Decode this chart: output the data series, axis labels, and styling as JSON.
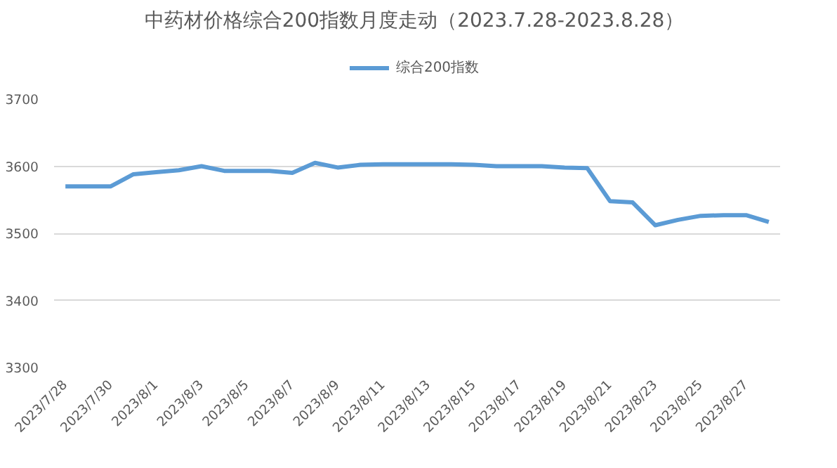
{
  "chart_data": {
    "type": "line",
    "title": "中药材价格综合200指数月度走动（2023.7.28-2023.8.28）",
    "categories": [
      "2023/7/28",
      null,
      "2023/7/30",
      null,
      "2023/8/1",
      null,
      "2023/8/3",
      null,
      "2023/8/5",
      null,
      "2023/8/7",
      null,
      "2023/8/9",
      null,
      "2023/8/11",
      null,
      "2023/8/13",
      null,
      "2023/8/15",
      null,
      "2023/8/17",
      null,
      "2023/8/19",
      null,
      "2023/8/21",
      null,
      "2023/8/23",
      null,
      "2023/8/25",
      null,
      "2023/8/27",
      null
    ],
    "series": [
      {
        "name": "综合200指数",
        "color": "#5b9bd5",
        "values": [
          3570,
          3570,
          3570,
          3588,
          3591,
          3594,
          3600,
          3593,
          3593,
          3593,
          3590,
          3605,
          3598,
          3602,
          3603,
          3603,
          3603,
          3603,
          3602,
          3600,
          3600,
          3600,
          3598,
          3597,
          3548,
          3546,
          3512,
          3520,
          3526,
          3527,
          3527,
          3517
        ]
      }
    ],
    "ylim": [
      3300,
      3700
    ],
    "yticks": [
      3300,
      3400,
      3500,
      3600,
      3700
    ],
    "grid": "y",
    "legend": "top",
    "marker": "none",
    "line_style": "solid"
  }
}
